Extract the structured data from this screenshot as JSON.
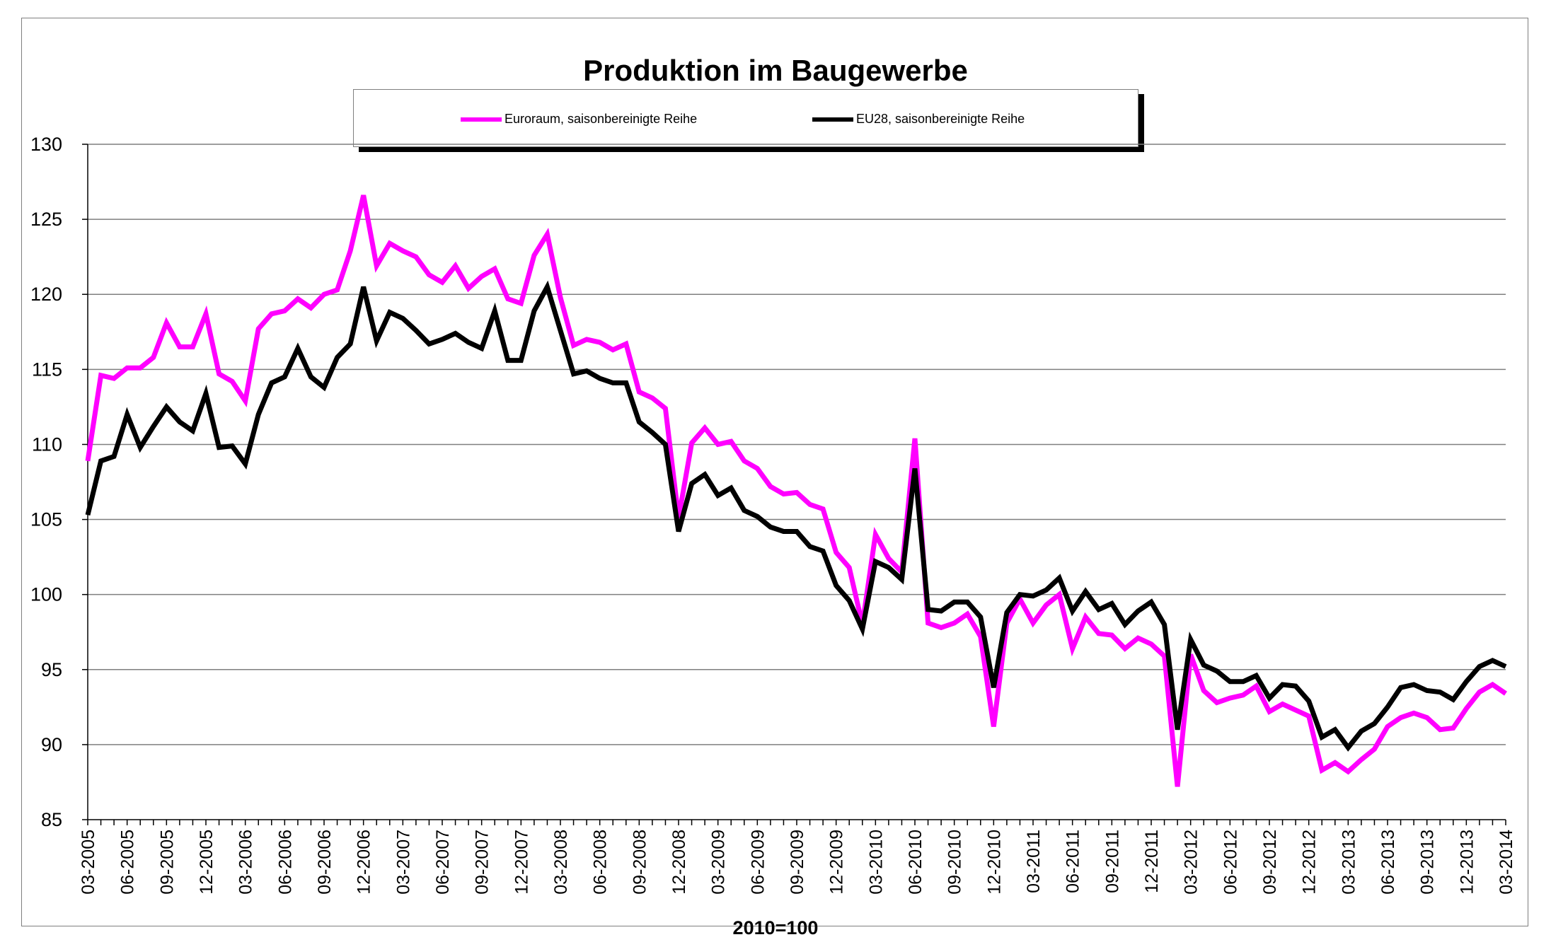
{
  "chart_data": {
    "type": "line",
    "title": "Produktion im Baugewerbe",
    "xlabel": "2010=100",
    "ylabel": "",
    "ylim": [
      85,
      130
    ],
    "yticks": [
      "85",
      "90",
      "95",
      "100",
      "105",
      "110",
      "115",
      "120",
      "125",
      "130"
    ],
    "grid": "horizontal",
    "legend_position": "top",
    "x_tick_labels": [
      "03-2005",
      "06-2005",
      "09-2005",
      "12-2005",
      "03-2006",
      "06-2006",
      "09-2006",
      "12-2006",
      "03-2007",
      "06-2007",
      "09-2007",
      "12-2007",
      "03-2008",
      "06-2008",
      "09-2008",
      "12-2008",
      "03-2009",
      "06-2009",
      "09-2009",
      "12-2009",
      "03-2010",
      "06-2010",
      "09-2010",
      "12-2010",
      "03-2011",
      "06-2011",
      "09-2011",
      "12-2011",
      "03-2012",
      "06-2012",
      "09-2012",
      "12-2012",
      "03-2013",
      "06-2013",
      "09-2013",
      "12-2013",
      "03-2014"
    ],
    "x_start": "2005-03",
    "series": [
      {
        "name": "Euroraum, saisonbereinigte Reihe",
        "color": "#ff00ff",
        "values": [
          108.9,
          114.6,
          114.4,
          115.1,
          115.1,
          115.8,
          118.1,
          116.5,
          116.5,
          118.7,
          114.7,
          114.2,
          112.9,
          117.7,
          118.7,
          118.9,
          119.7,
          119.1,
          120.0,
          120.3,
          122.9,
          126.6,
          121.9,
          123.4,
          122.9,
          122.5,
          121.3,
          120.8,
          121.9,
          120.4,
          121.2,
          121.7,
          119.7,
          119.4,
          122.6,
          124.0,
          119.8,
          116.6,
          117.0,
          116.8,
          116.3,
          116.7,
          113.5,
          113.1,
          112.4,
          105.1,
          110.1,
          111.1,
          110.0,
          110.2,
          108.9,
          108.4,
          107.2,
          106.7,
          106.8,
          106.0,
          105.7,
          102.8,
          101.8,
          98.0,
          104.0,
          102.4,
          101.5,
          110.4,
          98.1,
          97.8,
          98.1,
          98.7,
          97.2,
          91.2,
          98.1,
          99.7,
          98.1,
          99.3,
          100.0,
          96.4,
          98.5,
          97.4,
          97.3,
          96.4,
          97.1,
          96.7,
          95.9,
          87.2,
          96.0,
          93.6,
          92.8,
          93.1,
          93.3,
          93.9,
          92.2,
          92.7,
          92.3,
          91.9,
          88.3,
          88.8,
          88.2,
          89.0,
          89.7,
          91.2,
          91.8,
          92.1,
          91.8,
          91.0,
          91.1,
          92.4,
          93.5,
          94.0,
          93.4
        ]
      },
      {
        "name": "EU28, saisonbereinigte Reihe",
        "color": "#000000",
        "values": [
          105.3,
          108.9,
          109.2,
          112.0,
          109.8,
          111.2,
          112.5,
          111.5,
          110.9,
          113.4,
          109.8,
          109.9,
          108.7,
          112.0,
          114.1,
          114.5,
          116.4,
          114.5,
          113.8,
          115.8,
          116.7,
          120.5,
          116.9,
          118.8,
          118.4,
          117.6,
          116.7,
          117.0,
          117.4,
          116.8,
          116.4,
          118.9,
          115.6,
          115.6,
          118.9,
          120.5,
          117.6,
          114.7,
          114.9,
          114.4,
          114.1,
          114.1,
          111.5,
          110.8,
          110.0,
          104.2,
          107.4,
          108.0,
          106.6,
          107.1,
          105.6,
          105.2,
          104.5,
          104.2,
          104.2,
          103.2,
          102.9,
          100.6,
          99.6,
          97.7,
          102.2,
          101.8,
          101.0,
          108.4,
          99.0,
          98.9,
          99.5,
          99.5,
          98.5,
          93.8,
          98.8,
          100.0,
          99.9,
          100.3,
          101.1,
          98.9,
          100.2,
          99.0,
          99.4,
          98.0,
          98.9,
          99.5,
          98.0,
          91.0,
          97.0,
          95.3,
          94.9,
          94.2,
          94.2,
          94.6,
          93.1,
          94.0,
          93.9,
          92.9,
          90.5,
          91.0,
          89.8,
          90.9,
          91.4,
          92.5,
          93.8,
          94.0,
          93.6,
          93.5,
          93.0,
          94.2,
          95.2,
          95.6,
          95.2
        ]
      }
    ]
  }
}
